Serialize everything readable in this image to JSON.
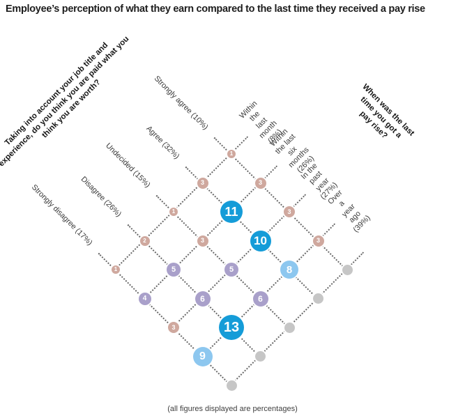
{
  "title": "Employee’s perception of what they earn compared to the last time they received a pay rise",
  "footnote": "(all figures displayed are percentages)",
  "left_axis": {
    "title": "Taking into account your job title and\nexperience, do you think you are paid what you\nthink you are worth?",
    "labels": [
      "Strongly agree (10%)",
      "Agree (32%)",
      "Undecided (15%)",
      "Disagree (26%)",
      "Strongly disagree (17%)"
    ]
  },
  "right_axis": {
    "title": "When was the last time you got a\npay rise?",
    "labels": [
      "Within the last\nmonth (8%)",
      "Within the last six\nmonths (26%)",
      "In the past year\n(27%)",
      "Over a year ago\n(39%)"
    ]
  },
  "chart_data": {
    "type": "heatmap",
    "title": "Employee’s perception of what they earn compared to the last time they received a pay rise",
    "units": "percent",
    "rows": [
      {
        "label": "Strongly agree",
        "pct": 10,
        "values": [
          1,
          3,
          3,
          3
        ]
      },
      {
        "label": "Agree",
        "pct": 32,
        "values": [
          3,
          11,
          10,
          8
        ]
      },
      {
        "label": "Undecided",
        "pct": 15,
        "values": [
          1,
          3,
          5,
          6
        ]
      },
      {
        "label": "Disagree",
        "pct": 26,
        "values": [
          2,
          5,
          6,
          13
        ]
      },
      {
        "label": "Strongly disagree",
        "pct": 17,
        "values": [
          1,
          4,
          3,
          9
        ]
      }
    ],
    "columns": [
      {
        "label": "Within the last month",
        "pct": 8
      },
      {
        "label": "Within the last six months",
        "pct": 26
      },
      {
        "label": "In the past year",
        "pct": 27
      },
      {
        "label": "Over a year ago",
        "pct": 39
      }
    ],
    "legend_position": "none",
    "grid": "dotted-diagonal-lattice"
  },
  "colors": {
    "bins": [
      {
        "max": 3,
        "color": "#cfa89e"
      },
      {
        "max": 6,
        "color": "#a9a0ca"
      },
      {
        "max": 9,
        "color": "#8dc7ef"
      },
      {
        "max": 99,
        "color": "#159cd8"
      }
    ],
    "terminal_dot": "#c6c6c6",
    "grid_line": "#686868",
    "title_text": "#1d1d1d",
    "label_text": "#3a3a3a",
    "node_text": "#ffffff"
  }
}
